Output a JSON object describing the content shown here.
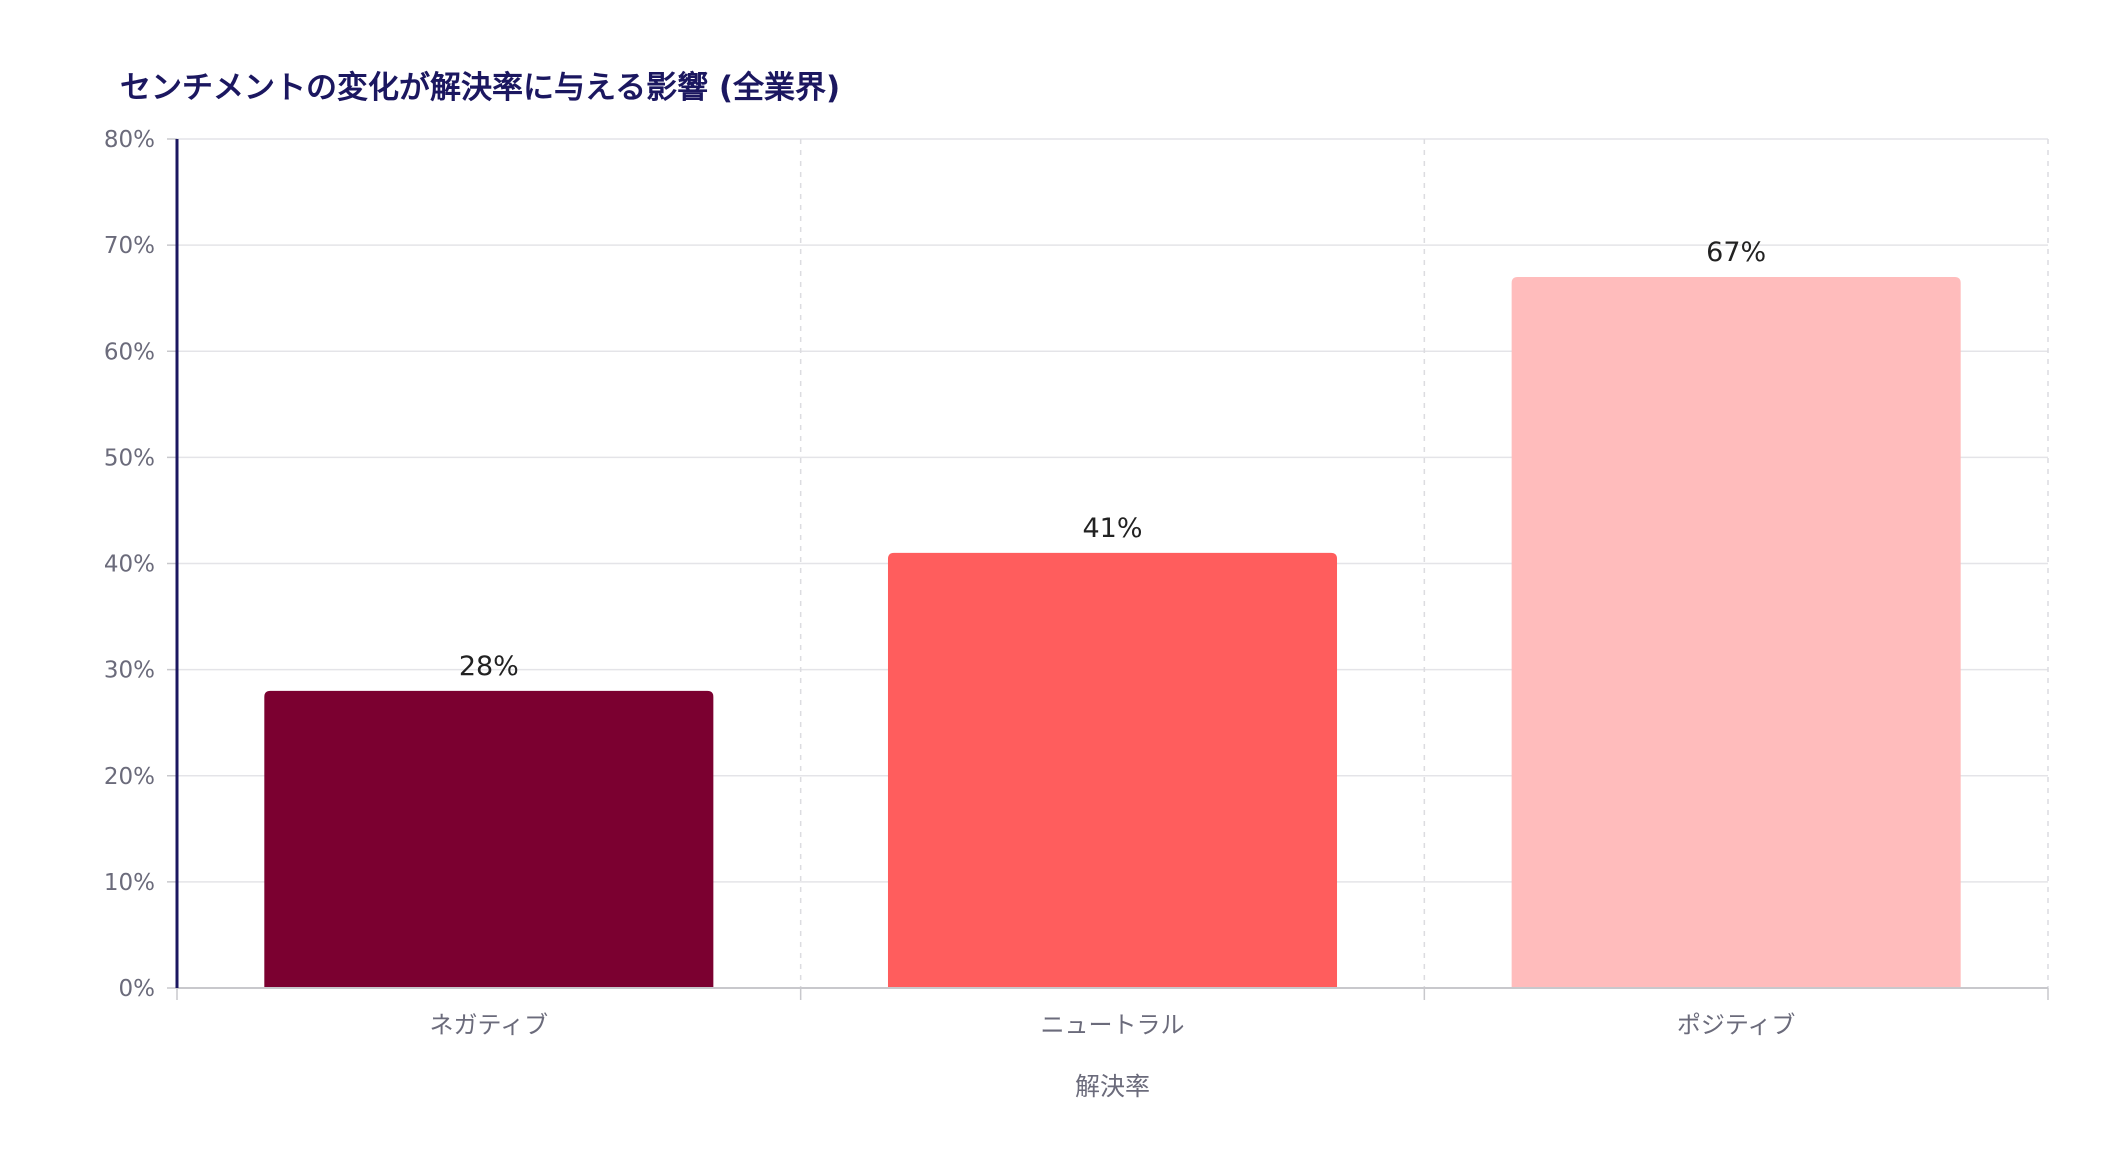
{
  "chart_data": {
    "type": "bar",
    "title": "センチメントの変化が解決率に与える影響 (全業界)",
    "xlabel": "解決率",
    "ylabel": "",
    "categories": [
      "ネガティブ",
      "ニュートラル",
      "ポジティブ"
    ],
    "values": [
      28,
      41,
      67
    ],
    "data_labels": [
      "28%",
      "41%",
      "67%"
    ],
    "colors": [
      "#7b0030",
      "#ff5d5d",
      "#ffbcbc"
    ],
    "ylim": [
      0,
      80
    ],
    "yticks": [
      0,
      10,
      20,
      30,
      40,
      50,
      60,
      70,
      80
    ],
    "ytick_labels": [
      "0%",
      "10%",
      "20%",
      "30%",
      "40%",
      "50%",
      "60%",
      "70%",
      "80%"
    ],
    "grid": true,
    "legend": "none"
  }
}
